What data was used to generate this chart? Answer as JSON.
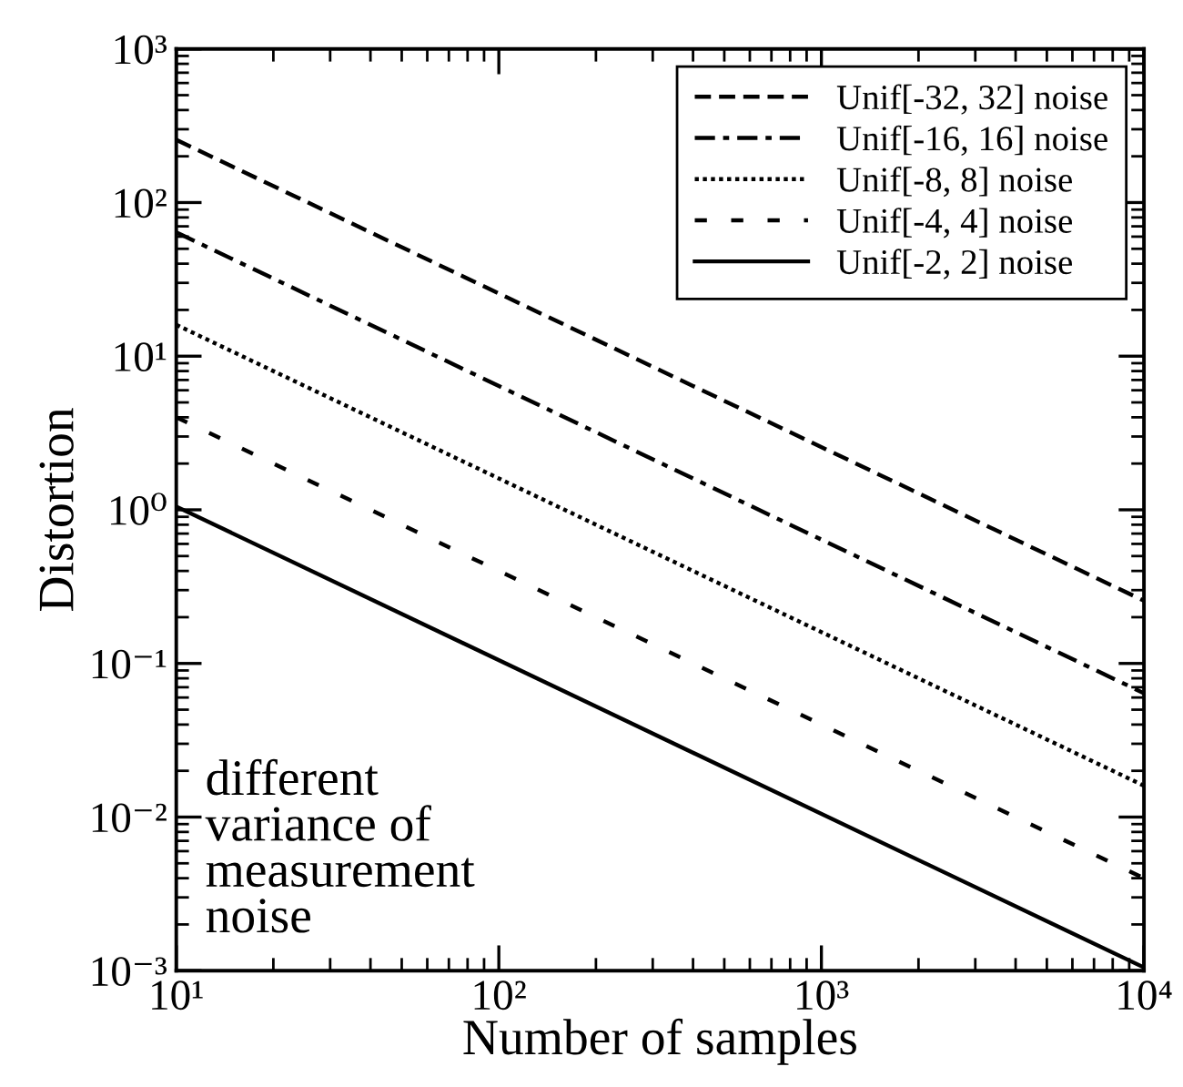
{
  "chart_data": {
    "type": "line",
    "xlabel": "Number of samples",
    "ylabel": "Distortion",
    "log": "xy",
    "x": [
      10,
      10000
    ],
    "xlim": [
      10,
      10000
    ],
    "ylim": [
      0.001,
      1000
    ],
    "xticks": [
      {
        "value": 10,
        "label": "10¹"
      },
      {
        "value": 100,
        "label": "10²"
      },
      {
        "value": 1000,
        "label": "10³"
      },
      {
        "value": 10000,
        "label": "10⁴"
      }
    ],
    "yticks": [
      {
        "value": 0.001,
        "label": "10⁻³"
      },
      {
        "value": 0.01,
        "label": "10⁻²"
      },
      {
        "value": 0.1,
        "label": "10⁻¹"
      },
      {
        "value": 1,
        "label": "10⁰"
      },
      {
        "value": 10,
        "label": "10¹"
      },
      {
        "value": 100,
        "label": "10²"
      },
      {
        "value": 1000,
        "label": "10³"
      }
    ],
    "grid": false,
    "legend": "top right",
    "series": [
      {
        "name": "Unif[-32, 32] noise",
        "color": "#000000",
        "line_style": "dashed",
        "values": [
          256,
          0.256
        ]
      },
      {
        "name": "Unif[-16, 16] noise",
        "color": "#000000",
        "line_style": "dashdot",
        "values": [
          64,
          0.064
        ]
      },
      {
        "name": "Unif[-8, 8] noise",
        "color": "#000000",
        "line_style": "dotted",
        "values": [
          16,
          0.016
        ]
      },
      {
        "name": "Unif[-4, 4] noise",
        "color": "#000000",
        "line_style": "sparse",
        "values": [
          4,
          0.004
        ]
      },
      {
        "name": "Unif[-2, 2] noise",
        "color": "#000000",
        "line_style": "solid",
        "values": [
          1.05,
          0.00105
        ]
      }
    ],
    "annotations": [
      "different\nvariance of\nmeasurement\nnoise"
    ]
  }
}
